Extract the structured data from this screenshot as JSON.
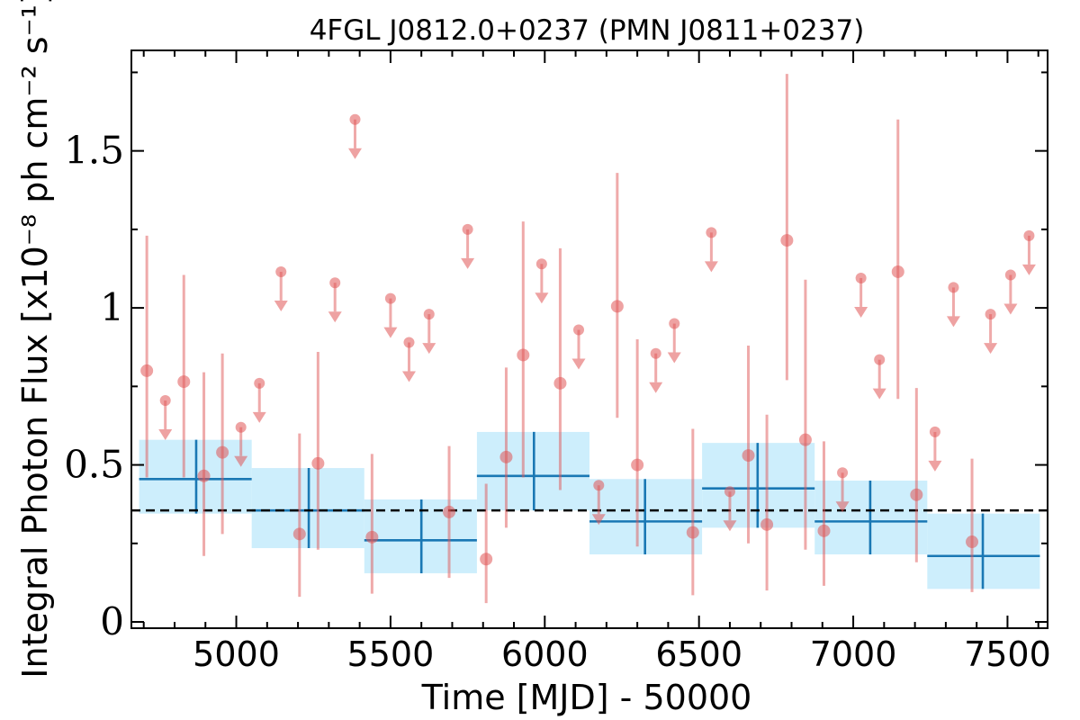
{
  "chart_data": {
    "type": "scatter",
    "title": "4FGL J0812.0+0237 (PMN J0811+0237)",
    "xlabel": "Time [MJD] - 50000",
    "ylabel": "Integral Photon Flux [x10⁻⁸ ph cm⁻² s⁻¹]",
    "xlim": [
      4660,
      7630
    ],
    "ylim": [
      -0.02,
      1.82
    ],
    "x_ticks": [
      {
        "value": 5000,
        "label": "5000"
      },
      {
        "value": 5500,
        "label": "5500"
      },
      {
        "value": 6000,
        "label": "6000"
      },
      {
        "value": 6500,
        "label": "6500"
      },
      {
        "value": 7000,
        "label": "7000"
      },
      {
        "value": 7500,
        "label": "7500"
      }
    ],
    "y_ticks": [
      {
        "value": 0,
        "label": "0"
      },
      {
        "value": 0.5,
        "label": "0.5"
      },
      {
        "value": 1,
        "label": "1"
      },
      {
        "value": 1.5,
        "label": "1.5"
      }
    ],
    "x_minor": 100,
    "y_minor": 0.25,
    "grid": false,
    "colors": {
      "points": "#e05555",
      "bins": "#1a78b4",
      "band": "#cdeefc",
      "mean": "#000000"
    },
    "mean_flux": 0.355,
    "detections": [
      {
        "x": 4710,
        "y": 0.8,
        "lo": 0.46,
        "hi": 1.23
      },
      {
        "x": 4830,
        "y": 0.765,
        "lo": 0.46,
        "hi": 1.105
      },
      {
        "x": 4895,
        "y": 0.465,
        "lo": 0.21,
        "hi": 0.795
      },
      {
        "x": 4955,
        "y": 0.54,
        "lo": 0.28,
        "hi": 0.855
      },
      {
        "x": 5205,
        "y": 0.28,
        "lo": 0.08,
        "hi": 0.6
      },
      {
        "x": 5265,
        "y": 0.505,
        "lo": 0.23,
        "hi": 0.86
      },
      {
        "x": 5440,
        "y": 0.27,
        "lo": 0.09,
        "hi": 0.535
      },
      {
        "x": 5690,
        "y": 0.35,
        "lo": 0.14,
        "hi": 0.56
      },
      {
        "x": 5810,
        "y": 0.2,
        "lo": 0.06,
        "hi": 0.44
      },
      {
        "x": 5875,
        "y": 0.525,
        "lo": 0.3,
        "hi": 0.81
      },
      {
        "x": 5930,
        "y": 0.85,
        "lo": 0.46,
        "hi": 1.275
      },
      {
        "x": 6050,
        "y": 0.76,
        "lo": 0.42,
        "hi": 1.19
      },
      {
        "x": 6235,
        "y": 1.005,
        "lo": 0.65,
        "hi": 1.43
      },
      {
        "x": 6300,
        "y": 0.5,
        "lo": 0.24,
        "hi": 0.9
      },
      {
        "x": 6480,
        "y": 0.285,
        "lo": 0.085,
        "hi": 0.615
      },
      {
        "x": 6660,
        "y": 0.53,
        "lo": 0.25,
        "hi": 0.88
      },
      {
        "x": 6720,
        "y": 0.31,
        "lo": 0.1,
        "hi": 0.66
      },
      {
        "x": 6785,
        "y": 1.215,
        "lo": 0.77,
        "hi": 1.745
      },
      {
        "x": 6845,
        "y": 0.58,
        "lo": 0.23,
        "hi": 1.09
      },
      {
        "x": 6905,
        "y": 0.29,
        "lo": 0.115,
        "hi": 0.575
      },
      {
        "x": 7145,
        "y": 1.115,
        "lo": 0.71,
        "hi": 1.6
      },
      {
        "x": 7205,
        "y": 0.405,
        "lo": 0.19,
        "hi": 0.745
      },
      {
        "x": 7385,
        "y": 0.255,
        "lo": 0.095,
        "hi": 0.52
      }
    ],
    "upper_limits": [
      {
        "x": 4770,
        "y": 0.705
      },
      {
        "x": 5015,
        "y": 0.62
      },
      {
        "x": 5075,
        "y": 0.76
      },
      {
        "x": 5145,
        "y": 1.115
      },
      {
        "x": 5320,
        "y": 1.08
      },
      {
        "x": 5385,
        "y": 1.6
      },
      {
        "x": 5500,
        "y": 1.03
      },
      {
        "x": 5560,
        "y": 0.89
      },
      {
        "x": 5625,
        "y": 0.98
      },
      {
        "x": 5750,
        "y": 1.25
      },
      {
        "x": 5990,
        "y": 1.14
      },
      {
        "x": 6110,
        "y": 0.93
      },
      {
        "x": 6175,
        "y": 0.435
      },
      {
        "x": 6360,
        "y": 0.855
      },
      {
        "x": 6420,
        "y": 0.95
      },
      {
        "x": 6540,
        "y": 1.24
      },
      {
        "x": 6600,
        "y": 0.415
      },
      {
        "x": 6965,
        "y": 0.475
      },
      {
        "x": 7025,
        "y": 1.095
      },
      {
        "x": 7085,
        "y": 0.835
      },
      {
        "x": 7265,
        "y": 0.605
      },
      {
        "x": 7325,
        "y": 1.065
      },
      {
        "x": 7445,
        "y": 0.98
      },
      {
        "x": 7510,
        "y": 1.105
      },
      {
        "x": 7570,
        "y": 1.23
      }
    ],
    "bins": [
      {
        "x0": 4685,
        "x1": 5050,
        "xc": 4870,
        "y": 0.455,
        "lo": 0.345,
        "hi": 0.58
      },
      {
        "x0": 5050,
        "x1": 5415,
        "xc": 5235,
        "y": 0.355,
        "lo": 0.235,
        "hi": 0.49
      },
      {
        "x0": 5415,
        "x1": 5780,
        "xc": 5600,
        "y": 0.26,
        "lo": 0.155,
        "hi": 0.39
      },
      {
        "x0": 5780,
        "x1": 6145,
        "xc": 5965,
        "y": 0.465,
        "lo": 0.355,
        "hi": 0.605
      },
      {
        "x0": 6145,
        "x1": 6510,
        "xc": 6325,
        "y": 0.32,
        "lo": 0.215,
        "hi": 0.455
      },
      {
        "x0": 6510,
        "x1": 6875,
        "xc": 6690,
        "y": 0.425,
        "lo": 0.3,
        "hi": 0.57
      },
      {
        "x0": 6875,
        "x1": 7240,
        "xc": 7055,
        "y": 0.32,
        "lo": 0.215,
        "hi": 0.45
      },
      {
        "x0": 7240,
        "x1": 7605,
        "xc": 7420,
        "y": 0.21,
        "lo": 0.105,
        "hi": 0.345
      }
    ]
  }
}
